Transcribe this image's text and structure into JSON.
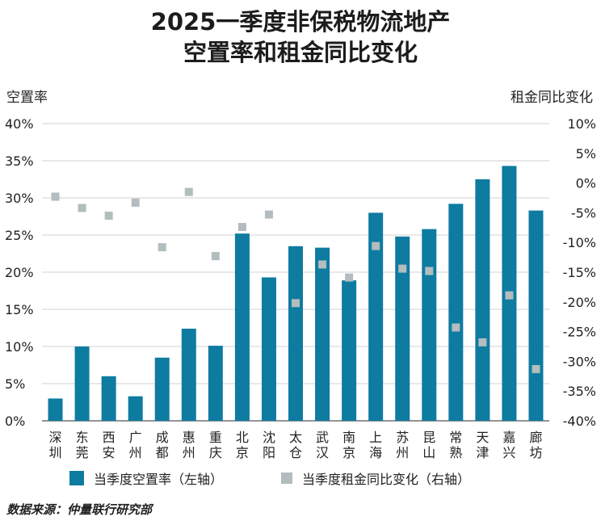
{
  "chart_data": {
    "type": "bar",
    "title_line1": "2025一季度非保税物流地产",
    "title_line2": "空置率和租金同比变化",
    "ylabel_left": "空置率",
    "ylabel_right": "租金同比变化",
    "categories": [
      "深圳",
      "东莞",
      "西安",
      "广州",
      "成都",
      "惠州",
      "重庆",
      "北京",
      "沈阳",
      "太仓",
      "武汉",
      "南京",
      "上海",
      "苏州",
      "昆山",
      "常熟",
      "天津",
      "嘉兴",
      "廊坊"
    ],
    "series": [
      {
        "name": "当季度空置率（左轴）",
        "axis": "left",
        "kind": "bar",
        "values": [
          3.0,
          10.0,
          6.0,
          3.3,
          8.5,
          12.4,
          10.1,
          25.2,
          19.3,
          23.5,
          23.3,
          18.9,
          28.0,
          24.8,
          25.8,
          29.2,
          32.5,
          34.3,
          28.3
        ]
      },
      {
        "name": "当季度租金同比变化（右轴）",
        "axis": "right",
        "kind": "marker",
        "values": [
          -2.3,
          -4.2,
          -5.5,
          -3.3,
          -10.8,
          -1.5,
          -12.3,
          -7.4,
          -5.3,
          -20.2,
          -13.7,
          -15.9,
          -10.6,
          -14.4,
          -14.8,
          -24.3,
          -26.8,
          -18.9,
          -31.3
        ]
      }
    ],
    "ylim_left": [
      0,
      40
    ],
    "yticks_left": [
      "0%",
      "5%",
      "10%",
      "15%",
      "20%",
      "25%",
      "30%",
      "35%",
      "40%"
    ],
    "ylim_right": [
      -40,
      10
    ],
    "yticks_right": [
      "-40%",
      "-35%",
      "-30%",
      "-25%",
      "-20%",
      "-15%",
      "-10%",
      "-5%",
      "0%",
      "5%",
      "10%"
    ],
    "grid": true,
    "legend_position": "bottom",
    "colors": {
      "bar": "#0e7ba1",
      "marker": "#b3bcbe",
      "grid": "#d0d0d0"
    }
  },
  "source": "数据来源：仲量联行研究部"
}
